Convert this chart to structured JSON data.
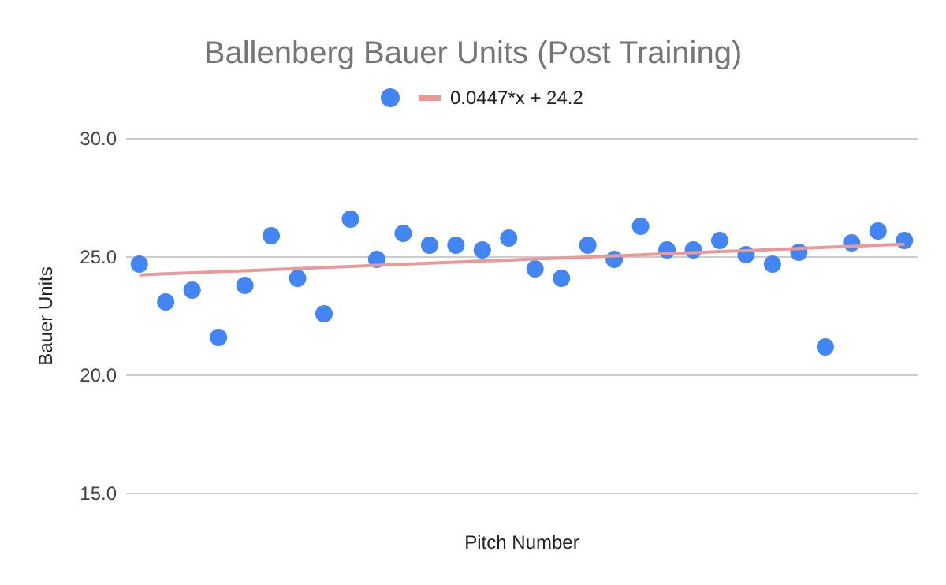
{
  "chart_data": {
    "type": "scatter",
    "title": "Ballenberg Bauer Units (Post Training)",
    "xlabel": "Pitch Number",
    "ylabel": "Bauer Units",
    "categories": [
      null,
      null,
      null,
      null,
      null,
      null,
      null,
      null,
      null,
      null,
      null,
      null,
      null,
      null,
      null,
      null,
      null,
      null,
      null,
      null,
      null,
      null,
      null,
      null,
      null,
      null,
      null,
      null,
      null,
      null
    ],
    "ylim": [
      15,
      30
    ],
    "yticks": [
      {
        "value": 15,
        "label": "15.0"
      },
      {
        "value": 20,
        "label": "20.0"
      },
      {
        "value": 25,
        "label": "25.0"
      },
      {
        "value": 30,
        "label": "30.0"
      }
    ],
    "tick_labels": "y",
    "grid": "y",
    "legend": "top",
    "marker": "circle",
    "series": [
      {
        "color": "#4285f4",
        "values": [
          24.7,
          23.1,
          23.6,
          21.6,
          23.8,
          25.9,
          24.1,
          22.6,
          26.6,
          24.9,
          26.0,
          25.5,
          25.5,
          25.3,
          25.8,
          24.5,
          24.1,
          25.5,
          24.9,
          26.3,
          25.3,
          25.3,
          25.7,
          25.1,
          24.7,
          25.2,
          21.2,
          25.6,
          26.1,
          25.7
        ]
      },
      {
        "type": "line",
        "name": "0.0447*x + 24.2",
        "color": "#ea9999",
        "values": [
          24.24,
          24.29,
          24.33,
          24.38,
          24.42,
          24.47,
          24.51,
          24.56,
          24.6,
          24.65,
          24.69,
          24.74,
          24.78,
          24.83,
          24.87,
          24.92,
          24.96,
          25.0,
          25.05,
          25.09,
          25.14,
          25.18,
          25.23,
          25.27,
          25.32,
          25.36,
          25.41,
          25.45,
          25.5,
          25.54
        ],
        "marker": "none",
        "line_style": "solid"
      }
    ]
  }
}
